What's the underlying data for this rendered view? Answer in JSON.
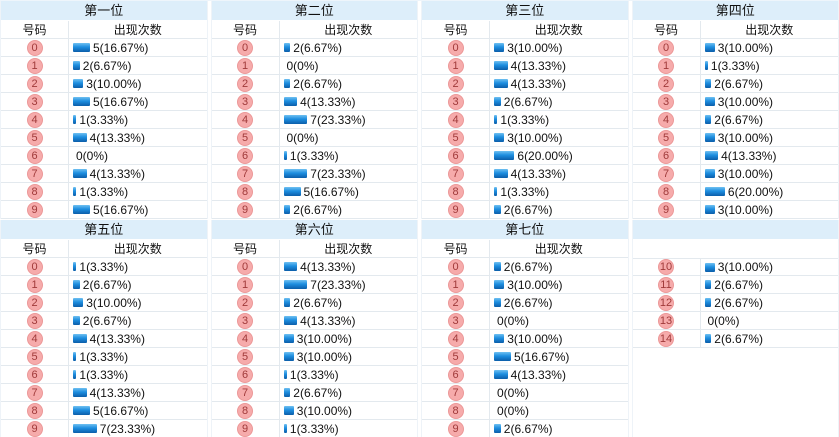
{
  "meta": {
    "number_col_header": "号码",
    "count_col_header": "出现次数",
    "accent_colors": {
      "section_header_bg": "#ddeefa",
      "bar_gradient_top": "#6fc0f1",
      "bar_gradient_mid": "#1e8ee0",
      "bar_gradient_bottom": "#0b5ea9",
      "number_badge_bg": "#f6abab",
      "number_badge_border": "#ec9898",
      "number_badge_text": "#a03a3a"
    }
  },
  "chart_data": [
    {
      "type": "bar",
      "title": "第一位",
      "xlabel": "号码",
      "ylabel": "出现次数",
      "has_title": true,
      "has_header": true,
      "rows": [
        {
          "num": "0",
          "count": 5,
          "pct": "16.67%",
          "label": "5(16.67%)"
        },
        {
          "num": "1",
          "count": 2,
          "pct": "6.67%",
          "label": "2(6.67%)"
        },
        {
          "num": "2",
          "count": 3,
          "pct": "10.00%",
          "label": "3(10.00%)"
        },
        {
          "num": "3",
          "count": 5,
          "pct": "16.67%",
          "label": "5(16.67%)"
        },
        {
          "num": "4",
          "count": 1,
          "pct": "3.33%",
          "label": "1(3.33%)"
        },
        {
          "num": "5",
          "count": 4,
          "pct": "13.33%",
          "label": "4(13.33%)"
        },
        {
          "num": "6",
          "count": 0,
          "pct": "0%",
          "label": "0(0%)"
        },
        {
          "num": "7",
          "count": 4,
          "pct": "13.33%",
          "label": "4(13.33%)"
        },
        {
          "num": "8",
          "count": 1,
          "pct": "3.33%",
          "label": "1(3.33%)"
        },
        {
          "num": "9",
          "count": 5,
          "pct": "16.67%",
          "label": "5(16.67%)"
        }
      ]
    },
    {
      "type": "bar",
      "title": "第二位",
      "xlabel": "号码",
      "ylabel": "出现次数",
      "has_title": true,
      "has_header": true,
      "rows": [
        {
          "num": "0",
          "count": 2,
          "pct": "6.67%",
          "label": "2(6.67%)"
        },
        {
          "num": "1",
          "count": 0,
          "pct": "0%",
          "label": "0(0%)"
        },
        {
          "num": "2",
          "count": 2,
          "pct": "6.67%",
          "label": "2(6.67%)"
        },
        {
          "num": "3",
          "count": 4,
          "pct": "13.33%",
          "label": "4(13.33%)"
        },
        {
          "num": "4",
          "count": 7,
          "pct": "23.33%",
          "label": "7(23.33%)"
        },
        {
          "num": "5",
          "count": 0,
          "pct": "0%",
          "label": "0(0%)"
        },
        {
          "num": "6",
          "count": 1,
          "pct": "3.33%",
          "label": "1(3.33%)"
        },
        {
          "num": "7",
          "count": 7,
          "pct": "23.33%",
          "label": "7(23.33%)"
        },
        {
          "num": "8",
          "count": 5,
          "pct": "16.67%",
          "label": "5(16.67%)"
        },
        {
          "num": "9",
          "count": 2,
          "pct": "6.67%",
          "label": "2(6.67%)"
        }
      ]
    },
    {
      "type": "bar",
      "title": "第三位",
      "xlabel": "号码",
      "ylabel": "出现次数",
      "has_title": true,
      "has_header": true,
      "rows": [
        {
          "num": "0",
          "count": 3,
          "pct": "10.00%",
          "label": "3(10.00%)"
        },
        {
          "num": "1",
          "count": 4,
          "pct": "13.33%",
          "label": "4(13.33%)"
        },
        {
          "num": "2",
          "count": 4,
          "pct": "13.33%",
          "label": "4(13.33%)"
        },
        {
          "num": "3",
          "count": 2,
          "pct": "6.67%",
          "label": "2(6.67%)"
        },
        {
          "num": "4",
          "count": 1,
          "pct": "3.33%",
          "label": "1(3.33%)"
        },
        {
          "num": "5",
          "count": 3,
          "pct": "10.00%",
          "label": "3(10.00%)"
        },
        {
          "num": "6",
          "count": 6,
          "pct": "20.00%",
          "label": "6(20.00%)"
        },
        {
          "num": "7",
          "count": 4,
          "pct": "13.33%",
          "label": "4(13.33%)"
        },
        {
          "num": "8",
          "count": 1,
          "pct": "3.33%",
          "label": "1(3.33%)"
        },
        {
          "num": "9",
          "count": 2,
          "pct": "6.67%",
          "label": "2(6.67%)"
        }
      ]
    },
    {
      "type": "bar",
      "title": "第四位",
      "xlabel": "号码",
      "ylabel": "出现次数",
      "has_title": true,
      "has_header": true,
      "rows": [
        {
          "num": "0",
          "count": 3,
          "pct": "10.00%",
          "label": "3(10.00%)"
        },
        {
          "num": "1",
          "count": 1,
          "pct": "3.33%",
          "label": "1(3.33%)"
        },
        {
          "num": "2",
          "count": 2,
          "pct": "6.67%",
          "label": "2(6.67%)"
        },
        {
          "num": "3",
          "count": 3,
          "pct": "10.00%",
          "label": "3(10.00%)"
        },
        {
          "num": "4",
          "count": 2,
          "pct": "6.67%",
          "label": "2(6.67%)"
        },
        {
          "num": "5",
          "count": 3,
          "pct": "10.00%",
          "label": "3(10.00%)"
        },
        {
          "num": "6",
          "count": 4,
          "pct": "13.33%",
          "label": "4(13.33%)"
        },
        {
          "num": "7",
          "count": 3,
          "pct": "10.00%",
          "label": "3(10.00%)"
        },
        {
          "num": "8",
          "count": 6,
          "pct": "20.00%",
          "label": "6(20.00%)"
        },
        {
          "num": "9",
          "count": 3,
          "pct": "10.00%",
          "label": "3(10.00%)"
        }
      ]
    },
    {
      "type": "bar",
      "title": "第五位",
      "xlabel": "号码",
      "ylabel": "出现次数",
      "has_title": true,
      "has_header": true,
      "rows": [
        {
          "num": "0",
          "count": 1,
          "pct": "3.33%",
          "label": "1(3.33%)"
        },
        {
          "num": "1",
          "count": 2,
          "pct": "6.67%",
          "label": "2(6.67%)"
        },
        {
          "num": "2",
          "count": 3,
          "pct": "10.00%",
          "label": "3(10.00%)"
        },
        {
          "num": "3",
          "count": 2,
          "pct": "6.67%",
          "label": "2(6.67%)"
        },
        {
          "num": "4",
          "count": 4,
          "pct": "13.33%",
          "label": "4(13.33%)"
        },
        {
          "num": "5",
          "count": 1,
          "pct": "3.33%",
          "label": "1(3.33%)"
        },
        {
          "num": "6",
          "count": 1,
          "pct": "3.33%",
          "label": "1(3.33%)"
        },
        {
          "num": "7",
          "count": 4,
          "pct": "13.33%",
          "label": "4(13.33%)"
        },
        {
          "num": "8",
          "count": 5,
          "pct": "16.67%",
          "label": "5(16.67%)"
        },
        {
          "num": "9",
          "count": 7,
          "pct": "23.33%",
          "label": "7(23.33%)"
        }
      ]
    },
    {
      "type": "bar",
      "title": "第六位",
      "xlabel": "号码",
      "ylabel": "出现次数",
      "has_title": true,
      "has_header": true,
      "rows": [
        {
          "num": "0",
          "count": 4,
          "pct": "13.33%",
          "label": "4(13.33%)"
        },
        {
          "num": "1",
          "count": 7,
          "pct": "23.33%",
          "label": "7(23.33%)"
        },
        {
          "num": "2",
          "count": 2,
          "pct": "6.67%",
          "label": "2(6.67%)"
        },
        {
          "num": "3",
          "count": 4,
          "pct": "13.33%",
          "label": "4(13.33%)"
        },
        {
          "num": "4",
          "count": 3,
          "pct": "10.00%",
          "label": "3(10.00%)"
        },
        {
          "num": "5",
          "count": 3,
          "pct": "10.00%",
          "label": "3(10.00%)"
        },
        {
          "num": "6",
          "count": 1,
          "pct": "3.33%",
          "label": "1(3.33%)"
        },
        {
          "num": "7",
          "count": 2,
          "pct": "6.67%",
          "label": "2(6.67%)"
        },
        {
          "num": "8",
          "count": 3,
          "pct": "10.00%",
          "label": "3(10.00%)"
        },
        {
          "num": "9",
          "count": 1,
          "pct": "3.33%",
          "label": "1(3.33%)"
        }
      ]
    },
    {
      "type": "bar",
      "title": "第七位",
      "xlabel": "号码",
      "ylabel": "出现次数",
      "has_title": true,
      "has_header": true,
      "rows": [
        {
          "num": "0",
          "count": 2,
          "pct": "6.67%",
          "label": "2(6.67%)"
        },
        {
          "num": "1",
          "count": 3,
          "pct": "10.00%",
          "label": "3(10.00%)"
        },
        {
          "num": "2",
          "count": 2,
          "pct": "6.67%",
          "label": "2(6.67%)"
        },
        {
          "num": "3",
          "count": 0,
          "pct": "0%",
          "label": "0(0%)"
        },
        {
          "num": "4",
          "count": 3,
          "pct": "10.00%",
          "label": "3(10.00%)"
        },
        {
          "num": "5",
          "count": 5,
          "pct": "16.67%",
          "label": "5(16.67%)"
        },
        {
          "num": "6",
          "count": 4,
          "pct": "13.33%",
          "label": "4(13.33%)"
        },
        {
          "num": "7",
          "count": 0,
          "pct": "0%",
          "label": "0(0%)"
        },
        {
          "num": "8",
          "count": 0,
          "pct": "0%",
          "label": "0(0%)"
        },
        {
          "num": "9",
          "count": 2,
          "pct": "6.67%",
          "label": "2(6.67%)"
        }
      ]
    },
    {
      "type": "bar",
      "title": "",
      "xlabel": "",
      "ylabel": "",
      "has_title": false,
      "has_header": false,
      "rows": [
        {
          "num": "10",
          "count": 3,
          "pct": "10.00%",
          "label": "3(10.00%)"
        },
        {
          "num": "11",
          "count": 2,
          "pct": "6.67%",
          "label": "2(6.67%)"
        },
        {
          "num": "12",
          "count": 2,
          "pct": "6.67%",
          "label": "2(6.67%)"
        },
        {
          "num": "13",
          "count": 0,
          "pct": "0%",
          "label": "0(0%)"
        },
        {
          "num": "14",
          "count": 2,
          "pct": "6.67%",
          "label": "2(6.67%)"
        }
      ]
    }
  ]
}
